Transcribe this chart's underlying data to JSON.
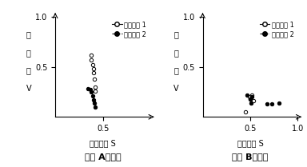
{
  "plot_A": {
    "group1": {
      "x": [
        0.38,
        0.38,
        0.39,
        0.4,
        0.4,
        0.41,
        0.42,
        0.42
      ],
      "y": [
        0.62,
        0.57,
        0.52,
        0.48,
        0.44,
        0.38,
        0.3,
        0.26
      ]
    },
    "group2": {
      "x": [
        0.34,
        0.37,
        0.38,
        0.39,
        0.4,
        0.41,
        0.42
      ],
      "y": [
        0.28,
        0.27,
        0.25,
        0.21,
        0.17,
        0.14,
        0.1
      ]
    }
  },
  "plot_B": {
    "group1": {
      "x": [
        0.45,
        0.49,
        0.5,
        0.52,
        0.53
      ],
      "y": [
        0.05,
        0.2,
        0.18,
        0.22,
        0.16
      ]
    },
    "group2": {
      "x": [
        0.47,
        0.5,
        0.51,
        0.52,
        0.68,
        0.73,
        0.8
      ],
      "y": [
        0.22,
        0.18,
        0.14,
        0.2,
        0.13,
        0.13,
        0.14
      ]
    }
  },
  "xlim": [
    0,
    1.0
  ],
  "ylim": [
    0,
    1.0
  ],
  "xticks_A": [
    0.5
  ],
  "xticks_B": [
    0.5,
    1.0
  ],
  "yticks": [
    0.5,
    1.0
  ],
  "xlabel": "製品精度 S",
  "ylabel_chars": [
    "能",
    "力",
    "値",
    "V"
  ],
  "title_A": "作業 Aの場合",
  "title_B": "作業 Bの場合",
  "legend_group1": "グループ 1",
  "legend_group2": "グループ 2",
  "bg_color": "white"
}
